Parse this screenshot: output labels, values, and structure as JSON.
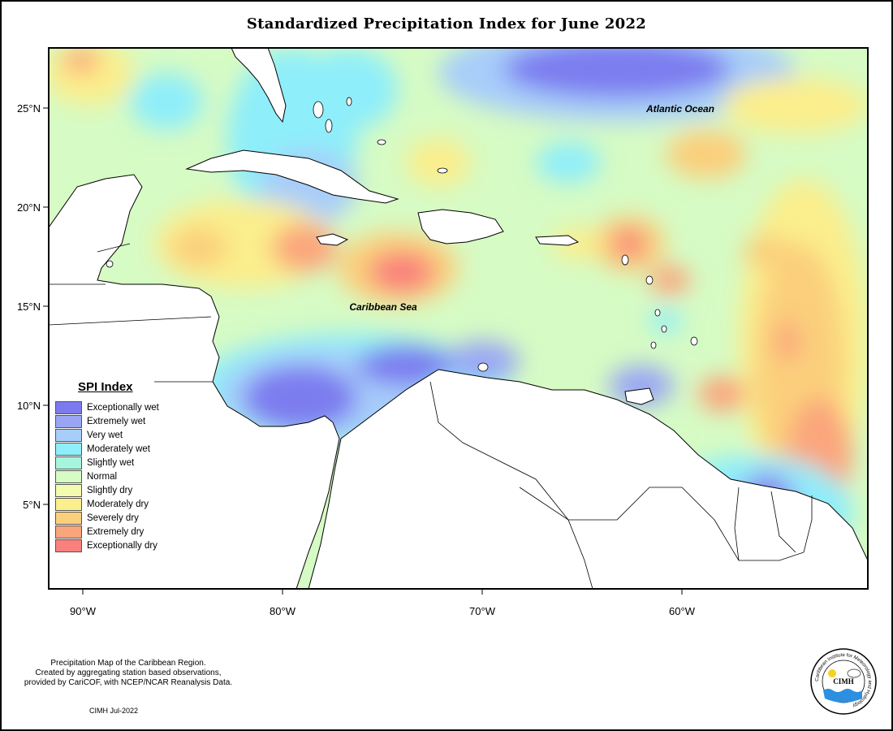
{
  "title": "Standardized Precipitation Index for June 2022",
  "labels": {
    "atlantic": "Atlantic Ocean",
    "caribbean": "Caribbean Sea"
  },
  "axes": {
    "y_ticks": [
      "25°N",
      "20°N",
      "15°N",
      "10°N",
      "5°N"
    ],
    "x_ticks": [
      "90°W",
      "80°W",
      "70°W",
      "60°W"
    ]
  },
  "legend": {
    "title": "SPI Index",
    "items": [
      {
        "label": "Exceptionally wet",
        "color": "#7b7bef"
      },
      {
        "label": "Extremely wet",
        "color": "#9aa6f4"
      },
      {
        "label": "Very wet",
        "color": "#a7cdfa"
      },
      {
        "label": "Moderately wet",
        "color": "#8eeefa"
      },
      {
        "label": "Slightly wet",
        "color": "#a6f5dd"
      },
      {
        "label": "Normal",
        "color": "#d6fbc4"
      },
      {
        "label": "Slightly dry",
        "color": "#f2fbae"
      },
      {
        "label": "Moderately dry",
        "color": "#fbee8c"
      },
      {
        "label": "Severely dry",
        "color": "#fbcf7c"
      },
      {
        "label": "Extremely dry",
        "color": "#fba57c"
      },
      {
        "label": "Exceptionally dry",
        "color": "#f9807c"
      }
    ]
  },
  "footnote": [
    "Precipitation Map of the Caribbean Region.",
    "Created by aggregating station based observations,",
    "provided by CariCOF, with NCEP/NCAR Reanalysis Data."
  ],
  "credit": "CIMH Jul-2022",
  "logo": {
    "ring_text": "Caribbean Institute for Meteorology and Hydrology",
    "abbr": "CIMH"
  }
}
